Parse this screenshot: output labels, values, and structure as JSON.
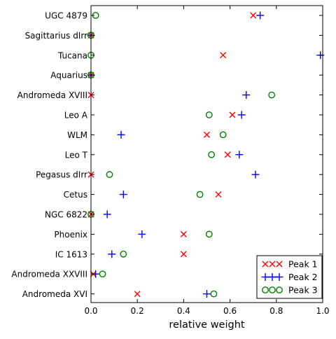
{
  "chart_data": {
    "type": "scatter",
    "title": "",
    "xlabel": "relative weight",
    "ylabel": "",
    "xlim": [
      0.0,
      1.0
    ],
    "grid": false,
    "legend_position": "lower-right",
    "xticks": [
      "0.0",
      "0.2",
      "0.4",
      "0.6",
      "0.8",
      "1.0"
    ],
    "categories": [
      "UGC 4879",
      "Sagittarius dIrr",
      "Tucana",
      "Aquarius",
      "Andromeda XVIII",
      "Leo A",
      "WLM",
      "Leo T",
      "Pegasus dIrr",
      "Cetus",
      "NGC 6822",
      "Phoenix",
      "IC 1613",
      "Andromeda XXVIII",
      "Andromeda XVI"
    ],
    "series": [
      {
        "name": "Peak 1",
        "marker": "x",
        "color": "#ff0000",
        "values": [
          0.7,
          0.0,
          0.57,
          0.0,
          0.0,
          0.61,
          0.5,
          0.59,
          0.0,
          0.55,
          0.0,
          0.4,
          0.4,
          0.01,
          0.2
        ]
      },
      {
        "name": "Peak 2",
        "marker": "+",
        "color": "#0000ff",
        "values": [
          0.73,
          0.0,
          0.99,
          0.0,
          0.67,
          0.65,
          0.13,
          0.64,
          0.71,
          0.14,
          0.07,
          0.22,
          0.09,
          0.02,
          0.5
        ]
      },
      {
        "name": "Peak 3",
        "marker": "o",
        "color": "#008000",
        "values": [
          0.02,
          0.0,
          0.0,
          0.0,
          0.78,
          0.51,
          0.57,
          0.52,
          0.08,
          0.47,
          0.0,
          0.51,
          0.14,
          0.05,
          0.53
        ]
      }
    ]
  }
}
